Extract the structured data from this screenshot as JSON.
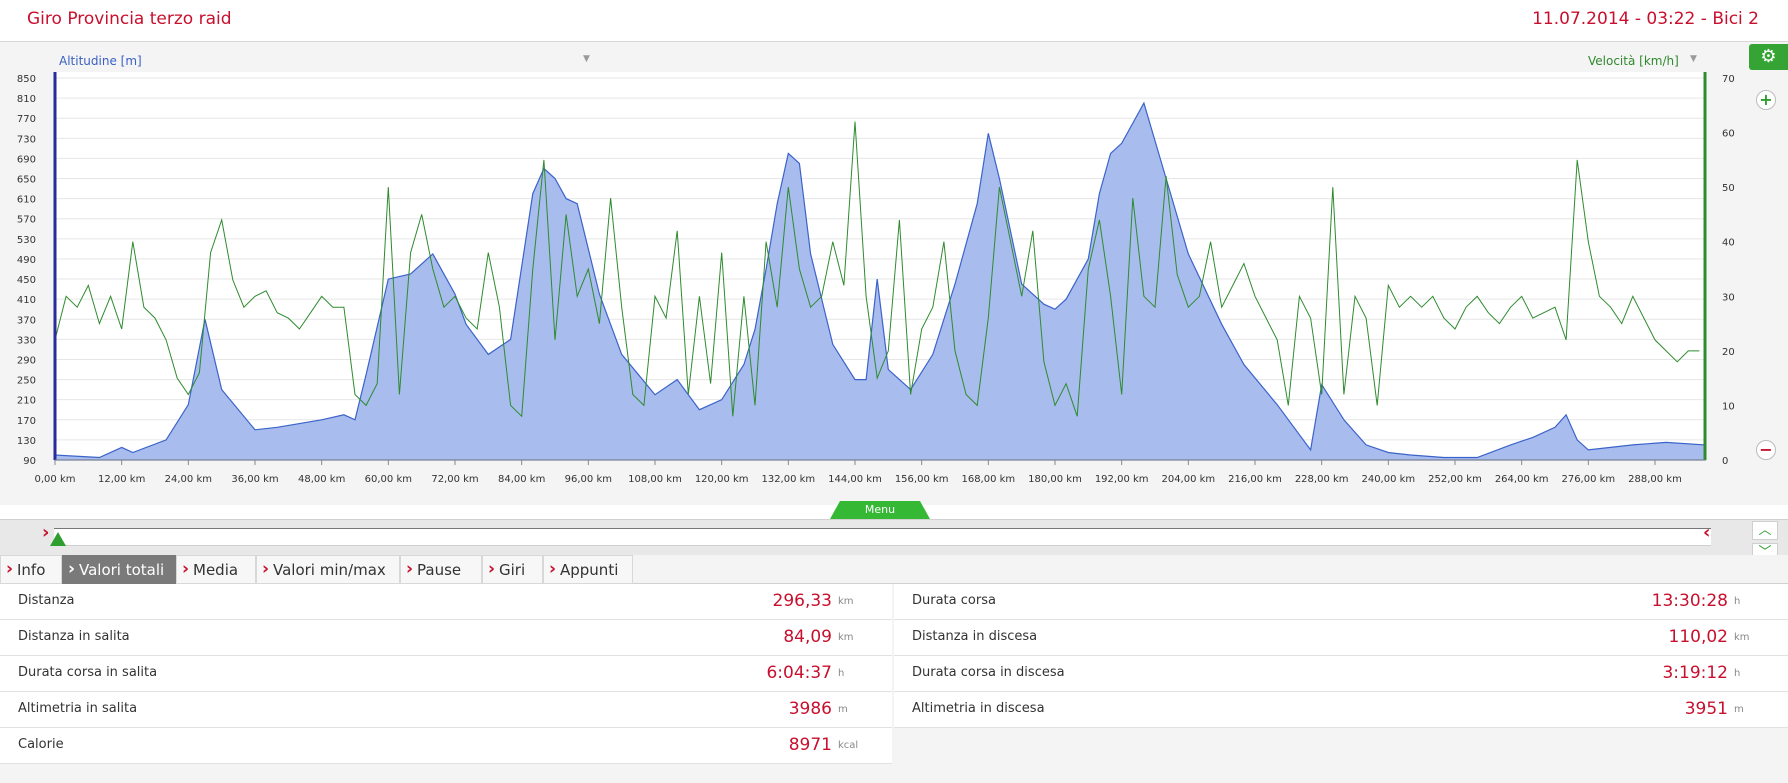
{
  "header": {
    "title": "Giro Provincia terzo raid",
    "session": "11.07.2014 - 03:22 - Bici 2"
  },
  "axes": {
    "left_label": "Altitudine [m]",
    "right_label": "Velocità [km/h]"
  },
  "menu": {
    "label": "Menu"
  },
  "tabs": [
    {
      "label": "Info",
      "active": false
    },
    {
      "label": "Valori totali",
      "active": true
    },
    {
      "label": "Media",
      "active": false
    },
    {
      "label": "Valori min/max",
      "active": false
    },
    {
      "label": "Pause",
      "active": false
    },
    {
      "label": "Giri",
      "active": false
    },
    {
      "label": "Appunti",
      "active": false
    }
  ],
  "stats_left": [
    {
      "label": "Distanza",
      "value": "296,33",
      "unit": "km"
    },
    {
      "label": "Distanza in salita",
      "value": "84,09",
      "unit": "km"
    },
    {
      "label": "Durata corsa in salita",
      "value": "6:04:37",
      "unit": "h"
    },
    {
      "label": "Altimetria in salita",
      "value": "3986",
      "unit": "m"
    },
    {
      "label": "Calorie",
      "value": "8971",
      "unit": "kcal"
    }
  ],
  "stats_right": [
    {
      "label": "Durata corsa",
      "value": "13:30:28",
      "unit": "h"
    },
    {
      "label": "Distanza in discesa",
      "value": "110,02",
      "unit": "km"
    },
    {
      "label": "Durata corsa in discesa",
      "value": "3:19:12",
      "unit": "h"
    },
    {
      "label": "Altimetria in discesa",
      "value": "3951",
      "unit": "m"
    }
  ],
  "chart_data": {
    "type": "area",
    "xlabel": "",
    "ylabel": "Altitudine [m]",
    "y2label": "Velocità [km/h]",
    "xlim": [
      0,
      297
    ],
    "ylim": [
      90,
      850
    ],
    "y2lim": [
      0,
      70
    ],
    "x_ticks": [
      "0,00 km",
      "12,00 km",
      "24,00 km",
      "36,00 km",
      "48,00 km",
      "60,00 km",
      "72,00 km",
      "84,00 km",
      "96,00 km",
      "108,00 km",
      "120,00 km",
      "132,00 km",
      "144,00 km",
      "156,00 km",
      "168,00 km",
      "180,00 km",
      "192,00 km",
      "204,00 km",
      "216,00 km",
      "228,00 km",
      "240,00 km",
      "252,00 km",
      "264,00 km",
      "276,00 km",
      "288,00 km"
    ],
    "y_ticks": [
      90,
      130,
      170,
      210,
      250,
      290,
      330,
      370,
      410,
      450,
      490,
      530,
      570,
      610,
      650,
      690,
      730,
      770,
      810,
      850
    ],
    "y2_ticks": [
      0,
      10,
      20,
      30,
      40,
      50,
      60,
      70
    ],
    "grid": true,
    "series": [
      {
        "name": "Altitudine [m]",
        "color": "#6f8fe0",
        "x": [
          0,
          8,
          12,
          14,
          20,
          24,
          27,
          30,
          36,
          40,
          48,
          52,
          54,
          56,
          60,
          64,
          68,
          72,
          74,
          78,
          82,
          86,
          88,
          90,
          92,
          94,
          98,
          102,
          108,
          112,
          116,
          120,
          124,
          126,
          128,
          130,
          132,
          134,
          136,
          140,
          144,
          146,
          148,
          150,
          154,
          158,
          162,
          166,
          168,
          170,
          174,
          178,
          180,
          182,
          186,
          188,
          190,
          192,
          196,
          200,
          204,
          210,
          214,
          220,
          226,
          228,
          232,
          236,
          240,
          244,
          250,
          256,
          262,
          266,
          270,
          272,
          274,
          276,
          280,
          284,
          290,
          297
        ],
        "y": [
          100,
          95,
          115,
          105,
          130,
          200,
          370,
          230,
          150,
          155,
          170,
          180,
          170,
          260,
          450,
          460,
          500,
          420,
          360,
          300,
          330,
          620,
          670,
          650,
          610,
          600,
          420,
          300,
          220,
          250,
          190,
          210,
          280,
          350,
          470,
          600,
          700,
          680,
          500,
          320,
          250,
          250,
          450,
          270,
          230,
          300,
          440,
          600,
          740,
          650,
          440,
          400,
          390,
          410,
          490,
          620,
          700,
          720,
          800,
          650,
          500,
          360,
          280,
          200,
          110,
          240,
          170,
          120,
          105,
          100,
          95,
          95,
          120,
          135,
          155,
          180,
          130,
          110,
          115,
          120,
          125,
          120
        ]
      },
      {
        "name": "Velocità [km/h]",
        "color": "#2e8b2e",
        "x": [
          0,
          2,
          4,
          6,
          8,
          10,
          12,
          14,
          16,
          18,
          20,
          22,
          24,
          26,
          28,
          30,
          32,
          34,
          36,
          38,
          40,
          42,
          44,
          46,
          48,
          50,
          52,
          54,
          56,
          58,
          60,
          62,
          64,
          66,
          68,
          70,
          72,
          74,
          76,
          78,
          80,
          82,
          84,
          86,
          88,
          90,
          92,
          94,
          96,
          98,
          100,
          102,
          104,
          106,
          108,
          110,
          112,
          114,
          116,
          118,
          120,
          122,
          124,
          126,
          128,
          130,
          132,
          134,
          136,
          138,
          140,
          142,
          144,
          146,
          148,
          150,
          152,
          154,
          156,
          158,
          160,
          162,
          164,
          166,
          168,
          170,
          172,
          174,
          176,
          178,
          180,
          182,
          184,
          186,
          188,
          190,
          192,
          194,
          196,
          198,
          200,
          202,
          204,
          206,
          208,
          210,
          212,
          214,
          216,
          218,
          220,
          222,
          224,
          226,
          228,
          230,
          232,
          234,
          236,
          238,
          240,
          242,
          244,
          246,
          248,
          250,
          252,
          254,
          256,
          258,
          260,
          262,
          264,
          266,
          270,
          272,
          274,
          276,
          278,
          280,
          282,
          284,
          286,
          288,
          290,
          292,
          294,
          296
        ],
        "y": [
          22,
          30,
          28,
          32,
          25,
          30,
          24,
          40,
          28,
          26,
          22,
          15,
          12,
          16,
          38,
          44,
          33,
          28,
          30,
          31,
          27,
          26,
          24,
          27,
          30,
          28,
          28,
          12,
          10,
          14,
          50,
          12,
          38,
          45,
          35,
          28,
          30,
          26,
          24,
          38,
          28,
          10,
          8,
          35,
          55,
          22,
          45,
          30,
          35,
          25,
          48,
          28,
          12,
          10,
          30,
          26,
          42,
          12,
          30,
          14,
          38,
          8,
          30,
          10,
          40,
          28,
          50,
          35,
          28,
          30,
          40,
          32,
          62,
          30,
          15,
          20,
          44,
          12,
          24,
          28,
          40,
          20,
          12,
          10,
          26,
          50,
          40,
          30,
          42,
          18,
          10,
          14,
          8,
          35,
          44,
          30,
          12,
          48,
          30,
          28,
          52,
          34,
          28,
          30,
          40,
          28,
          32,
          36,
          30,
          26,
          22,
          10,
          30,
          26,
          12,
          50,
          12,
          30,
          26,
          10,
          32,
          28,
          30,
          28,
          30,
          26,
          24,
          28,
          30,
          27,
          25,
          28,
          30,
          26,
          28,
          22,
          55,
          40,
          30,
          28,
          25,
          30,
          26,
          22,
          20,
          18,
          20,
          20
        ]
      }
    ]
  }
}
